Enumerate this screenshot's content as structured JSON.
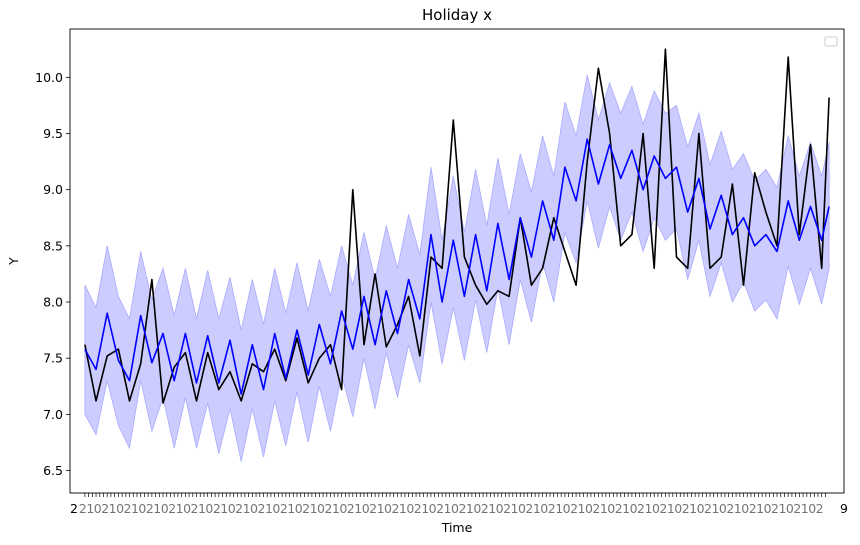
{
  "chart_data": {
    "type": "line",
    "title": "Holiday x",
    "xlabel": "Time",
    "ylabel": "Y",
    "xlim": [
      -4,
      204
    ],
    "ylim": [
      6.3,
      10.43
    ],
    "y_ticks": [
      6.5,
      7.0,
      7.5,
      8.0,
      8.5,
      9.0,
      9.5,
      10.0
    ],
    "y_tick_labels": [
      "6.5",
      "7.0",
      "7.5",
      "8.0",
      "8.5",
      "9.0",
      "9.5",
      "10.0"
    ],
    "x_tick_count": 200,
    "x_tick_label_first": "2",
    "x_tick_label_last": "9",
    "legend": {
      "placement": "top-right",
      "entries": []
    },
    "grid": false,
    "colors": {
      "actual": "#000000",
      "forecast": "#0000ff",
      "band": "#ccccff",
      "band_edge": "#aaaaff"
    },
    "x": [
      0,
      3,
      6,
      9,
      12,
      15,
      18,
      21,
      24,
      27,
      30,
      33,
      36,
      39,
      42,
      45,
      48,
      51,
      54,
      57,
      60,
      63,
      66,
      69,
      72,
      75,
      78,
      81,
      84,
      87,
      90,
      93,
      96,
      99,
      102,
      105,
      108,
      111,
      114,
      117,
      120,
      123,
      126,
      129,
      132,
      135,
      138,
      141,
      144,
      147,
      150,
      153,
      156,
      159,
      162,
      165,
      168,
      171,
      174,
      177,
      180,
      183,
      186,
      189,
      192,
      195,
      198,
      200
    ],
    "series": [
      {
        "values": [
          7.62,
          7.12,
          7.52,
          7.58,
          7.12,
          7.45,
          8.2,
          7.1,
          7.42,
          7.55,
          7.12,
          7.55,
          7.22,
          7.38,
          7.12,
          7.45,
          7.38,
          7.58,
          7.3,
          7.68,
          7.28,
          7.5,
          7.62,
          7.22,
          9.0,
          7.62,
          8.25,
          7.6,
          7.8,
          8.05,
          7.52,
          8.4,
          8.3,
          9.62,
          8.4,
          8.15,
          7.98,
          8.1,
          8.05,
          8.75,
          8.15,
          8.3,
          8.75,
          8.45,
          8.15,
          9.25,
          10.08,
          9.5,
          8.5,
          8.6,
          9.5,
          8.3,
          10.25,
          8.4,
          8.3,
          9.5,
          8.3,
          8.4,
          9.05,
          8.15,
          9.15,
          8.8,
          8.5,
          10.18,
          8.6,
          9.4,
          8.3,
          9.82
        ]
      },
      {
        "values": [
          7.58,
          7.4,
          7.9,
          7.48,
          7.3,
          7.88,
          7.46,
          7.72,
          7.3,
          7.72,
          7.28,
          7.7,
          7.28,
          7.66,
          7.18,
          7.62,
          7.22,
          7.72,
          7.32,
          7.75,
          7.35,
          7.8,
          7.45,
          7.92,
          7.58,
          8.05,
          7.62,
          8.1,
          7.72,
          8.2,
          7.85,
          8.6,
          8.0,
          8.55,
          8.05,
          8.6,
          8.1,
          8.7,
          8.2,
          8.75,
          8.4,
          8.9,
          8.55,
          9.2,
          8.9,
          9.45,
          9.05,
          9.4,
          9.1,
          9.35,
          9.0,
          9.3,
          9.1,
          9.2,
          8.8,
          9.1,
          8.65,
          8.95,
          8.6,
          8.75,
          8.5,
          8.6,
          8.45,
          8.9,
          8.55,
          8.85,
          8.55,
          8.85
        ]
      }
    ],
    "band": {
      "lower": [
        7.0,
        6.82,
        7.3,
        6.9,
        6.7,
        7.3,
        6.85,
        7.15,
        6.7,
        7.15,
        6.7,
        7.1,
        6.65,
        7.05,
        6.58,
        7.05,
        6.62,
        7.12,
        6.72,
        7.2,
        6.75,
        7.25,
        6.85,
        7.35,
        6.98,
        7.5,
        7.05,
        7.55,
        7.15,
        7.62,
        7.28,
        8.0,
        7.45,
        7.95,
        7.48,
        8.02,
        7.55,
        8.12,
        7.62,
        8.2,
        7.82,
        8.35,
        8.0,
        8.62,
        8.35,
        8.9,
        8.48,
        8.85,
        8.55,
        8.8,
        8.45,
        8.75,
        8.55,
        8.65,
        8.2,
        8.55,
        8.05,
        8.35,
        8.0,
        8.18,
        7.92,
        8.02,
        7.85,
        8.32,
        7.98,
        8.3,
        7.98,
        8.3
      ],
      "upper": [
        8.15,
        7.95,
        8.5,
        8.05,
        7.85,
        8.45,
        8.02,
        8.3,
        7.88,
        8.3,
        7.85,
        8.28,
        7.85,
        8.22,
        7.75,
        8.2,
        7.8,
        8.3,
        7.9,
        8.35,
        7.92,
        8.38,
        8.05,
        8.5,
        8.15,
        8.62,
        8.2,
        8.68,
        8.3,
        8.78,
        8.42,
        9.2,
        8.55,
        9.12,
        8.62,
        9.18,
        8.68,
        9.28,
        8.78,
        9.32,
        8.98,
        9.48,
        9.12,
        9.78,
        9.48,
        10.02,
        9.62,
        9.95,
        9.68,
        9.92,
        9.58,
        9.88,
        9.68,
        9.75,
        9.38,
        9.68,
        9.22,
        9.52,
        9.18,
        9.32,
        9.08,
        9.18,
        9.02,
        9.48,
        9.12,
        9.42,
        9.12,
        9.42
      ]
    }
  }
}
